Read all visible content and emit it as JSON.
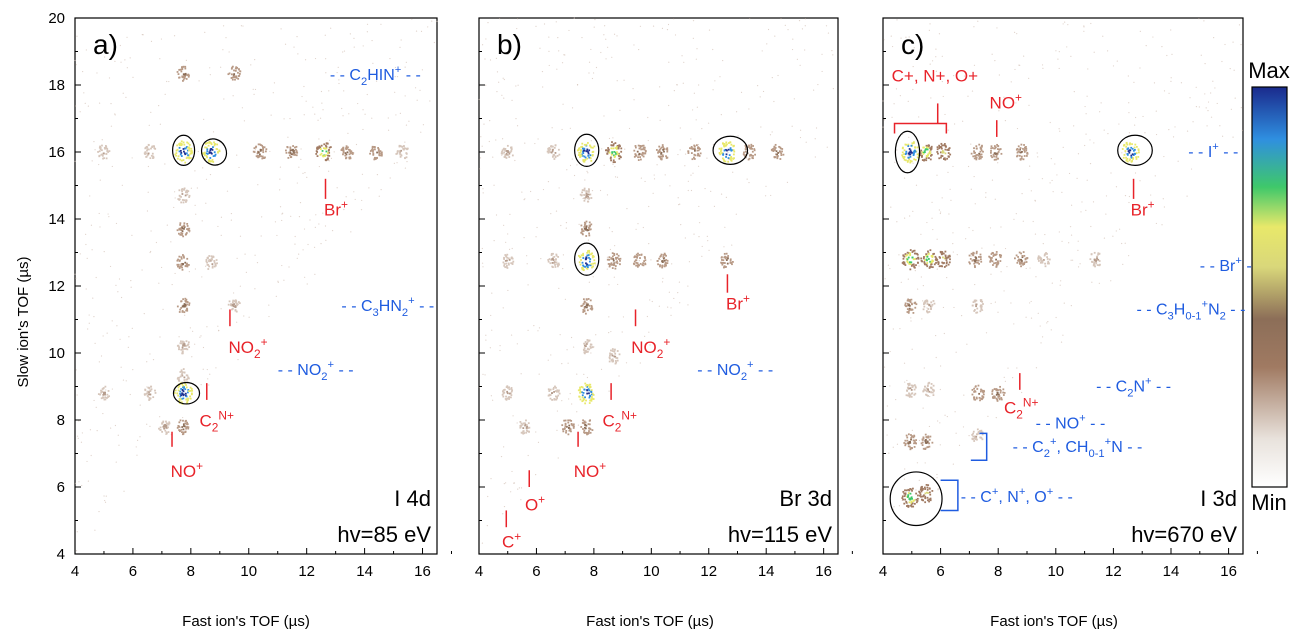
{
  "figure": {
    "y_axis_label": "Slow ion's TOF (µs)",
    "x_axis_label": "Fast ion's TOF (µs)",
    "colorbar": {
      "max_label": "Max",
      "min_label": "Min"
    }
  },
  "chart_data": [
    {
      "type": "heatmap",
      "panel_label": "a)",
      "edge": "I 4d",
      "photon_energy": "hv=85 eV",
      "xlim": [
        4,
        16.5
      ],
      "ylim": [
        4,
        20
      ],
      "xticks": [
        4,
        6,
        8,
        10,
        12,
        14,
        16
      ],
      "yticks": [
        4,
        6,
        8,
        10,
        12,
        14,
        16,
        18,
        20
      ],
      "islands": [
        {
          "x": 7.75,
          "y": 18.35,
          "level": 0.35
        },
        {
          "x": 9.5,
          "y": 18.35,
          "level": 0.35
        },
        {
          "x": 5.0,
          "y": 16.0,
          "level": 0.25
        },
        {
          "x": 6.6,
          "y": 16.0,
          "level": 0.3
        },
        {
          "x": 7.75,
          "y": 16.0,
          "level": 1.0
        },
        {
          "x": 8.7,
          "y": 16.0,
          "level": 0.95
        },
        {
          "x": 10.4,
          "y": 16.0,
          "level": 0.45
        },
        {
          "x": 11.5,
          "y": 16.0,
          "level": 0.4
        },
        {
          "x": 12.6,
          "y": 16.0,
          "level": 0.75
        },
        {
          "x": 13.4,
          "y": 16.0,
          "level": 0.4
        },
        {
          "x": 14.4,
          "y": 16.0,
          "level": 0.35
        },
        {
          "x": 15.3,
          "y": 16.0,
          "level": 0.3
        },
        {
          "x": 7.75,
          "y": 14.7,
          "level": 0.3
        },
        {
          "x": 7.75,
          "y": 13.7,
          "level": 0.35
        },
        {
          "x": 7.75,
          "y": 12.7,
          "level": 0.4
        },
        {
          "x": 8.7,
          "y": 12.7,
          "level": 0.3
        },
        {
          "x": 7.75,
          "y": 11.4,
          "level": 0.35
        },
        {
          "x": 9.5,
          "y": 11.4,
          "level": 0.3
        },
        {
          "x": 7.75,
          "y": 10.2,
          "level": 0.3
        },
        {
          "x": 7.75,
          "y": 9.3,
          "level": 0.3
        },
        {
          "x": 7.75,
          "y": 8.8,
          "level": 1.0
        },
        {
          "x": 6.6,
          "y": 8.8,
          "level": 0.25
        },
        {
          "x": 7.1,
          "y": 7.8,
          "level": 0.3
        },
        {
          "x": 7.75,
          "y": 7.8,
          "level": 0.35
        },
        {
          "x": 5.0,
          "y": 8.8,
          "level": 0.2
        }
      ],
      "ellipses": [
        {
          "x": 7.75,
          "y": 16.05,
          "rx": 0.38,
          "ry": 0.45
        },
        {
          "x": 8.8,
          "y": 16.0,
          "rx": 0.42,
          "ry": 0.4,
          "rot": -30
        },
        {
          "x": 7.85,
          "y": 8.8,
          "rx": 0.45,
          "ry": 0.32
        }
      ],
      "red_labels": [
        {
          "text": "Br",
          "sup": "+",
          "x": 12.6,
          "y": 14.1,
          "line": [
            12.65,
            14.6,
            12.65,
            15.2
          ]
        },
        {
          "text": "NO",
          "sub": "2",
          "sup": "+",
          "x": 9.3,
          "y": 10.0,
          "line": [
            9.35,
            10.8,
            9.35,
            11.3
          ]
        },
        {
          "text": "C",
          "sub": "2",
          "sup": "N+",
          "x": 8.3,
          "y": 7.8,
          "line": [
            8.55,
            8.6,
            8.55,
            9.1
          ]
        },
        {
          "text": "NO",
          "sup": "+",
          "x": 7.3,
          "y": 6.3,
          "line": [
            7.35,
            7.2,
            7.35,
            7.65
          ]
        }
      ],
      "blue_labels": [
        {
          "pre": "- - ",
          "text": "C",
          "sub": "2",
          "mid": "HIN",
          "sup": "+",
          "post": " - -",
          "x": 12.8,
          "y": 18.3
        },
        {
          "pre": "- - ",
          "text": "C",
          "sub": "3",
          "mid": "HN",
          "sub2": "2",
          "sup": "+",
          "post": " - -",
          "x": 13.2,
          "y": 11.4
        },
        {
          "pre": "- - ",
          "text": "NO",
          "sub": "2",
          "sup": "+",
          "post": " - -",
          "x": 11.0,
          "y": 9.5
        }
      ]
    },
    {
      "type": "heatmap",
      "panel_label": "b)",
      "edge": "Br 3d",
      "photon_energy": "hv=115 eV",
      "xlim": [
        4,
        16.5
      ],
      "ylim": [
        4,
        20
      ],
      "xticks": [
        4,
        6,
        8,
        10,
        12,
        14,
        16
      ],
      "yticks": [
        4,
        6,
        8,
        10,
        12,
        14,
        16,
        18,
        20
      ],
      "islands": [
        {
          "x": 5.0,
          "y": 16.0,
          "level": 0.3
        },
        {
          "x": 6.6,
          "y": 16.0,
          "level": 0.3
        },
        {
          "x": 7.75,
          "y": 16.0,
          "level": 1.0
        },
        {
          "x": 8.7,
          "y": 16.0,
          "level": 0.85
        },
        {
          "x": 9.6,
          "y": 16.0,
          "level": 0.45
        },
        {
          "x": 10.4,
          "y": 16.0,
          "level": 0.4
        },
        {
          "x": 11.5,
          "y": 16.0,
          "level": 0.35
        },
        {
          "x": 12.65,
          "y": 16.0,
          "level": 0.9
        },
        {
          "x": 13.4,
          "y": 16.0,
          "level": 0.4
        },
        {
          "x": 14.4,
          "y": 16.0,
          "level": 0.35
        },
        {
          "x": 7.75,
          "y": 14.7,
          "level": 0.3
        },
        {
          "x": 7.75,
          "y": 13.7,
          "level": 0.35
        },
        {
          "x": 5.0,
          "y": 12.75,
          "level": 0.25
        },
        {
          "x": 6.6,
          "y": 12.75,
          "level": 0.3
        },
        {
          "x": 7.75,
          "y": 12.75,
          "level": 1.0
        },
        {
          "x": 8.7,
          "y": 12.75,
          "level": 0.45
        },
        {
          "x": 9.6,
          "y": 12.75,
          "level": 0.35
        },
        {
          "x": 10.4,
          "y": 12.75,
          "level": 0.35
        },
        {
          "x": 12.65,
          "y": 12.75,
          "level": 0.4
        },
        {
          "x": 7.75,
          "y": 11.4,
          "level": 0.35
        },
        {
          "x": 7.75,
          "y": 10.2,
          "level": 0.3
        },
        {
          "x": 8.7,
          "y": 9.9,
          "level": 0.3
        },
        {
          "x": 7.75,
          "y": 8.8,
          "level": 0.95
        },
        {
          "x": 6.6,
          "y": 8.8,
          "level": 0.3
        },
        {
          "x": 5.0,
          "y": 8.8,
          "level": 0.25
        },
        {
          "x": 7.1,
          "y": 7.8,
          "level": 0.35
        },
        {
          "x": 5.6,
          "y": 7.8,
          "level": 0.3
        },
        {
          "x": 7.75,
          "y": 7.8,
          "level": 0.35
        }
      ],
      "ellipses": [
        {
          "x": 7.75,
          "y": 16.05,
          "rx": 0.42,
          "ry": 0.48
        },
        {
          "x": 12.75,
          "y": 16.05,
          "rx": 0.6,
          "ry": 0.42
        },
        {
          "x": 7.75,
          "y": 12.8,
          "rx": 0.42,
          "ry": 0.48
        }
      ],
      "red_labels": [
        {
          "text": "Br",
          "sup": "+",
          "x": 12.6,
          "y": 11.3,
          "line": [
            12.65,
            11.8,
            12.65,
            12.35
          ]
        },
        {
          "text": "NO",
          "sub": "2",
          "sup": "+",
          "x": 9.3,
          "y": 10.0,
          "line": [
            9.45,
            10.8,
            9.45,
            11.3
          ]
        },
        {
          "text": "C",
          "sub": "2",
          "sup": "N+",
          "x": 8.3,
          "y": 7.8,
          "line": [
            8.6,
            8.6,
            8.6,
            9.1
          ]
        },
        {
          "text": "NO",
          "sup": "+",
          "x": 7.3,
          "y": 6.3,
          "line": [
            7.45,
            7.2,
            7.45,
            7.65
          ]
        },
        {
          "text": "O",
          "sup": "+",
          "x": 5.6,
          "y": 5.3,
          "line": [
            5.75,
            6.0,
            5.75,
            6.5
          ]
        },
        {
          "text": "C",
          "sup": "+",
          "x": 4.8,
          "y": 4.2,
          "line": [
            4.95,
            4.8,
            4.95,
            5.3
          ]
        }
      ],
      "blue_labels": [
        {
          "pre": "- - ",
          "text": "NO",
          "sub": "2",
          "sup": "+",
          "post": " - -",
          "x": 11.6,
          "y": 9.5
        }
      ]
    },
    {
      "type": "heatmap",
      "panel_label": "c)",
      "edge": "I 3d",
      "photon_energy": "hv=670 eV",
      "xlim": [
        4,
        16.5
      ],
      "ylim": [
        4,
        20
      ],
      "xticks": [
        4,
        6,
        8,
        10,
        12,
        14,
        16
      ],
      "yticks": [
        4,
        6,
        8,
        10,
        12,
        14,
        16,
        18,
        20
      ],
      "islands": [
        {
          "x": 4.95,
          "y": 16.0,
          "level": 1.0
        },
        {
          "x": 5.5,
          "y": 16.0,
          "level": 0.7
        },
        {
          "x": 6.1,
          "y": 16.0,
          "level": 0.55
        },
        {
          "x": 7.3,
          "y": 16.0,
          "level": 0.4
        },
        {
          "x": 7.9,
          "y": 16.0,
          "level": 0.4
        },
        {
          "x": 8.8,
          "y": 16.0,
          "level": 0.4
        },
        {
          "x": 12.6,
          "y": 16.0,
          "level": 0.9
        },
        {
          "x": 4.95,
          "y": 12.8,
          "level": 0.85
        },
        {
          "x": 5.6,
          "y": 12.8,
          "level": 0.75
        },
        {
          "x": 6.1,
          "y": 12.8,
          "level": 0.5
        },
        {
          "x": 7.2,
          "y": 12.8,
          "level": 0.4
        },
        {
          "x": 7.9,
          "y": 12.8,
          "level": 0.4
        },
        {
          "x": 8.8,
          "y": 12.8,
          "level": 0.35
        },
        {
          "x": 9.6,
          "y": 12.8,
          "level": 0.3
        },
        {
          "x": 11.4,
          "y": 12.8,
          "level": 0.3
        },
        {
          "x": 4.95,
          "y": 11.4,
          "level": 0.35
        },
        {
          "x": 5.6,
          "y": 11.4,
          "level": 0.3
        },
        {
          "x": 7.3,
          "y": 11.4,
          "level": 0.25
        },
        {
          "x": 4.95,
          "y": 8.9,
          "level": 0.3
        },
        {
          "x": 5.6,
          "y": 8.9,
          "level": 0.3
        },
        {
          "x": 7.3,
          "y": 8.8,
          "level": 0.35
        },
        {
          "x": 8.0,
          "y": 8.8,
          "level": 0.4
        },
        {
          "x": 4.95,
          "y": 7.35,
          "level": 0.4
        },
        {
          "x": 5.5,
          "y": 7.35,
          "level": 0.35
        },
        {
          "x": 7.3,
          "y": 7.5,
          "level": 0.3
        },
        {
          "x": 4.95,
          "y": 5.7,
          "level": 0.85
        },
        {
          "x": 5.5,
          "y": 5.8,
          "level": 0.6
        }
      ],
      "ellipses": [
        {
          "x": 4.85,
          "y": 16.0,
          "rx": 0.42,
          "ry": 0.62
        },
        {
          "x": 12.75,
          "y": 16.05,
          "rx": 0.6,
          "ry": 0.45
        },
        {
          "x": 5.15,
          "y": 5.65,
          "rx": 0.9,
          "ry": 0.8
        }
      ],
      "red_labels": [
        {
          "text": "Br",
          "sup": "+",
          "x": 12.6,
          "y": 14.1,
          "line": [
            12.7,
            14.6,
            12.7,
            15.2
          ]
        },
        {
          "text": "NO",
          "sup": "+",
          "x": 7.7,
          "y": 17.3,
          "line": [
            7.95,
            16.45,
            7.95,
            16.95
          ]
        },
        {
          "text": "C",
          "sub": "2",
          "sup": "N+",
          "x": 8.2,
          "y": 8.2,
          "line": [
            8.75,
            8.9,
            8.75,
            9.4
          ]
        },
        {
          "text": "C+, N+, O+",
          "x": 4.3,
          "y": 18.1
        }
      ],
      "blue_labels": [
        {
          "pre": "- - ",
          "text": "I",
          "sup": "+",
          "post": " - -",
          "x": 14.6,
          "y": 16.0
        },
        {
          "pre": "- - ",
          "text": "Br",
          "sup": "+",
          "post": " - -",
          "x": 15.0,
          "y": 12.6
        },
        {
          "pre": "- - ",
          "text": "C",
          "sub": "3",
          "mid": "H",
          "sub2": "0-1",
          "mid2": "N",
          "sub3": "2",
          "sup": "+",
          "post": " - -",
          "x": 12.8,
          "y": 11.3
        },
        {
          "pre": "- - ",
          "text": "C",
          "sub": "2",
          "mid": "N",
          "sup": "+",
          "post": " - -",
          "x": 11.4,
          "y": 9.0
        },
        {
          "pre": "- - ",
          "text": "NO",
          "sup": "+",
          "post": " - -",
          "x": 9.3,
          "y": 7.9
        },
        {
          "pre": "- - ",
          "text": "C",
          "sub": "2",
          "sup": "+",
          "mid": ", CH",
          "sub2": "0-1",
          "mid2": "N",
          "sup2": "+",
          "post": " - -",
          "x": 8.5,
          "y": 7.2
        },
        {
          "pre": "- - ",
          "text": "C",
          "sup": "+",
          "mid": ", N",
          "sup2": "+",
          "mid2": ", O",
          "sup3": "+",
          "post": " - -",
          "x": 6.7,
          "y": 5.7
        }
      ]
    }
  ]
}
